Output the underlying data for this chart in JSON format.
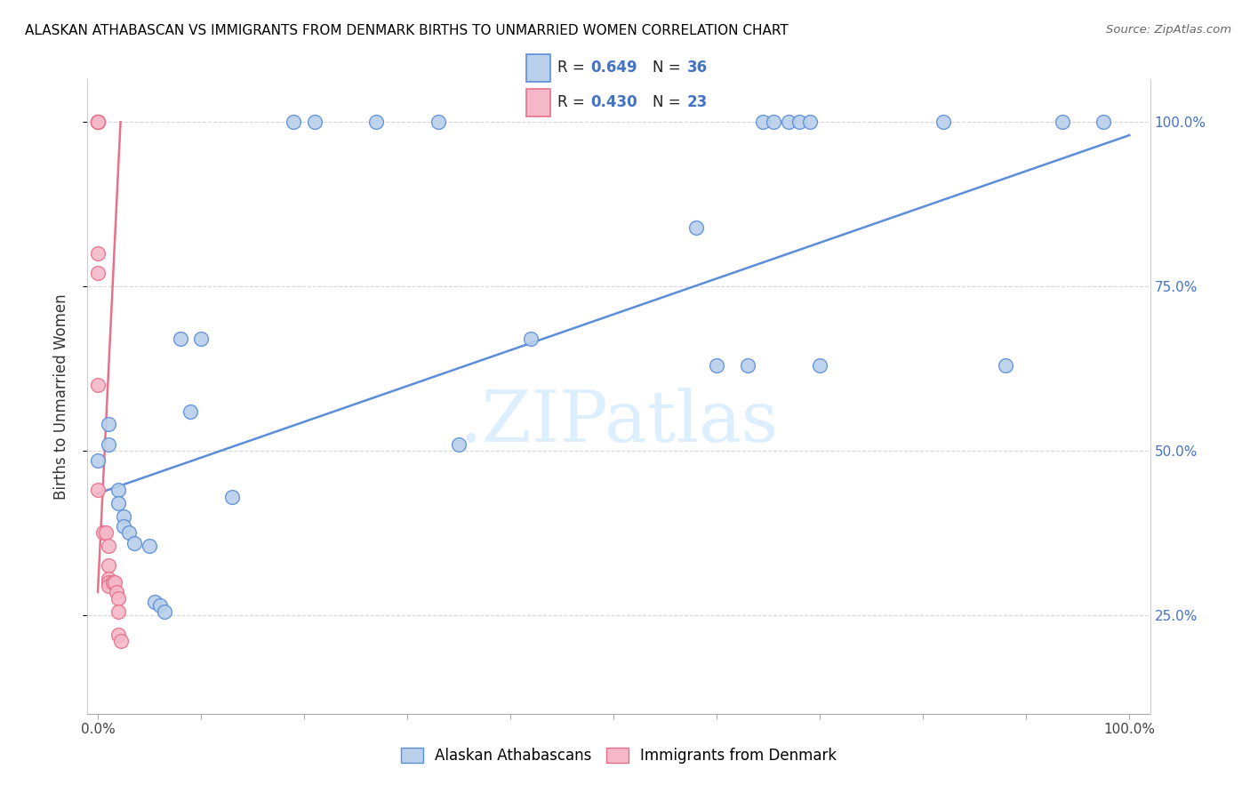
{
  "title": "ALASKAN ATHABASCAN VS IMMIGRANTS FROM DENMARK BIRTHS TO UNMARRIED WOMEN CORRELATION CHART",
  "source": "Source: ZipAtlas.com",
  "ylabel": "Births to Unmarried Women",
  "blue_label": "Alaskan Athabascans",
  "pink_label": "Immigrants from Denmark",
  "blue_R_val": "0.649",
  "blue_N_val": "36",
  "pink_R_val": "0.430",
  "pink_N_val": "23",
  "blue_fill": "#b8d0ea",
  "pink_fill": "#f5b8c8",
  "blue_edge": "#5b8dd9",
  "pink_edge": "#e8708a",
  "blue_line": "#5b8dd9",
  "pink_line": "#e8708a",
  "watermark_color": "#ddeeff",
  "blue_scatter_x": [
    0.0,
    0.01,
    0.01,
    0.02,
    0.02,
    0.025,
    0.025,
    0.03,
    0.035,
    0.05,
    0.055,
    0.06,
    0.065,
    0.08,
    0.09,
    0.1,
    0.13,
    0.19,
    0.21,
    0.27,
    0.33,
    0.35,
    0.42,
    0.58,
    0.6,
    0.63,
    0.645,
    0.655,
    0.67,
    0.68,
    0.69,
    0.7,
    0.82,
    0.88,
    0.935,
    0.975
  ],
  "blue_scatter_y": [
    0.485,
    0.54,
    0.51,
    0.44,
    0.42,
    0.4,
    0.385,
    0.375,
    0.36,
    0.355,
    0.27,
    0.265,
    0.255,
    0.67,
    0.56,
    0.67,
    0.43,
    1.0,
    1.0,
    1.0,
    1.0,
    0.51,
    0.67,
    0.84,
    0.63,
    0.63,
    1.0,
    1.0,
    1.0,
    1.0,
    1.0,
    0.63,
    1.0,
    0.63,
    1.0,
    1.0
  ],
  "pink_scatter_x": [
    0.0,
    0.0,
    0.0,
    0.0,
    0.0,
    0.0,
    0.0,
    0.0,
    0.0,
    0.005,
    0.008,
    0.01,
    0.01,
    0.01,
    0.01,
    0.01,
    0.015,
    0.016,
    0.018,
    0.02,
    0.02,
    0.02,
    0.022
  ],
  "pink_scatter_y": [
    1.0,
    1.0,
    1.0,
    1.0,
    1.0,
    0.8,
    0.77,
    0.6,
    0.44,
    0.375,
    0.375,
    0.355,
    0.325,
    0.305,
    0.3,
    0.295,
    0.3,
    0.3,
    0.285,
    0.275,
    0.255,
    0.22,
    0.21
  ],
  "blue_line_x": [
    0.0,
    1.0
  ],
  "blue_line_y": [
    0.435,
    0.98
  ],
  "pink_line_x": [
    0.0,
    0.022
  ],
  "pink_line_y": [
    0.285,
    1.0
  ],
  "xlim": [
    -0.01,
    1.02
  ],
  "ylim": [
    0.1,
    1.065
  ],
  "x_ticks": [
    0.0,
    0.1,
    0.2,
    0.3,
    0.4,
    0.5,
    0.6,
    0.7,
    0.8,
    0.9,
    1.0
  ],
  "y_ticks": [
    0.25,
    0.5,
    0.75,
    1.0
  ],
  "y_tick_labels": [
    "25.0%",
    "50.0%",
    "75.0%",
    "100.0%"
  ]
}
